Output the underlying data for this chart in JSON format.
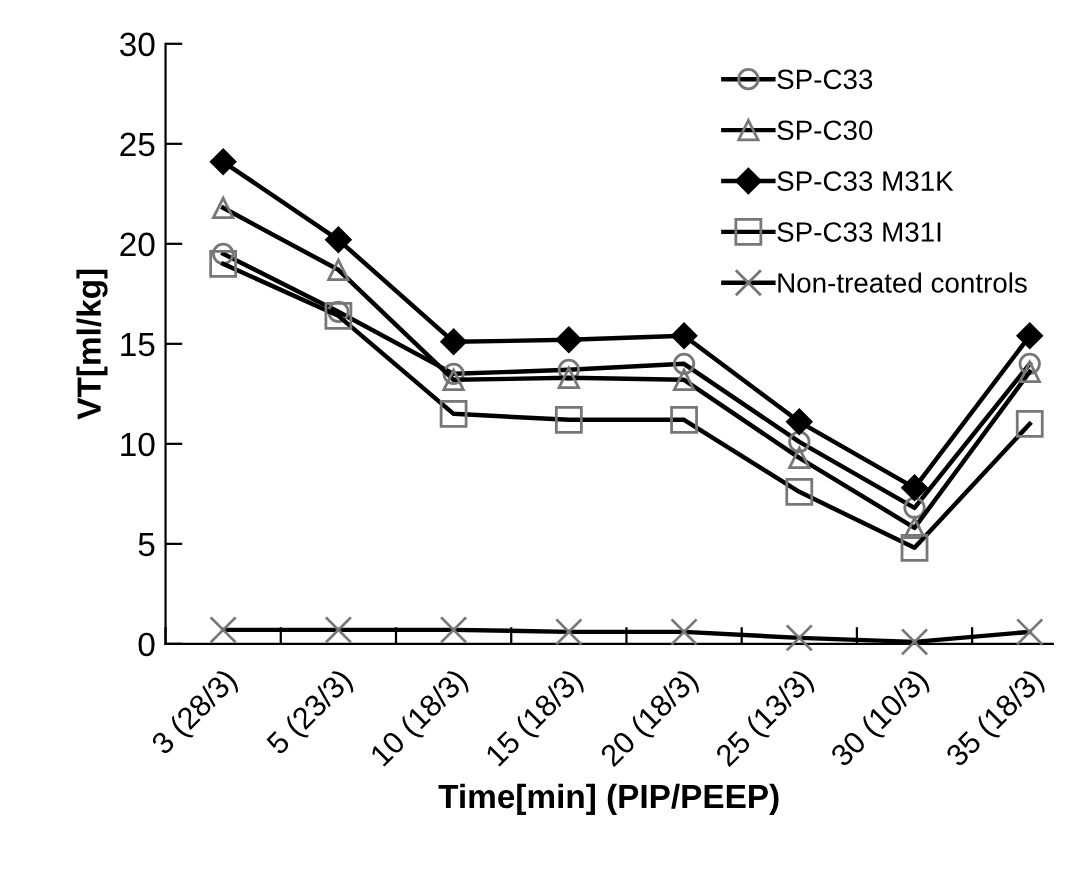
{
  "chart_data": {
    "type": "line",
    "xlabel": "Time[min] (PIP/PEEP)",
    "ylabel": "VT[ml/kg]",
    "categories": [
      "3 (28/3)",
      "5 (23/3)",
      "10 (18/3)",
      "15 (18/3)",
      "20 (18/3)",
      "25 (13/3)",
      "30 (10/3)",
      "35 (18/3)"
    ],
    "ylim": [
      0,
      30
    ],
    "yticks": [
      0,
      5,
      10,
      15,
      20,
      25,
      30
    ],
    "grid": false,
    "legend": "top right",
    "series": [
      {
        "name": "SP-C33",
        "color": "#000000",
        "marker": "circle",
        "values": [
          19.5,
          16.6,
          13.5,
          13.7,
          14.0,
          10.1,
          6.8,
          14.0
        ]
      },
      {
        "name": "SP-C30",
        "color": "#000000",
        "marker": "triangle",
        "values": [
          21.8,
          18.7,
          13.2,
          13.3,
          13.2,
          9.3,
          5.8,
          13.6
        ]
      },
      {
        "name": "SP-C33 M31K",
        "color": "#000000",
        "marker": "diamond",
        "values": [
          24.1,
          20.2,
          15.1,
          15.2,
          15.4,
          11.1,
          7.8,
          15.4
        ]
      },
      {
        "name": "SP-C33 M31I",
        "color": "#000000",
        "marker": "square",
        "values": [
          19.0,
          16.4,
          11.5,
          11.2,
          11.2,
          7.6,
          4.8,
          11.0
        ]
      },
      {
        "name": "Non-treated controls",
        "color": "#000000",
        "marker": "cross",
        "values": [
          0.7,
          0.7,
          0.7,
          0.6,
          0.6,
          0.3,
          0.1,
          0.6
        ]
      }
    ]
  }
}
